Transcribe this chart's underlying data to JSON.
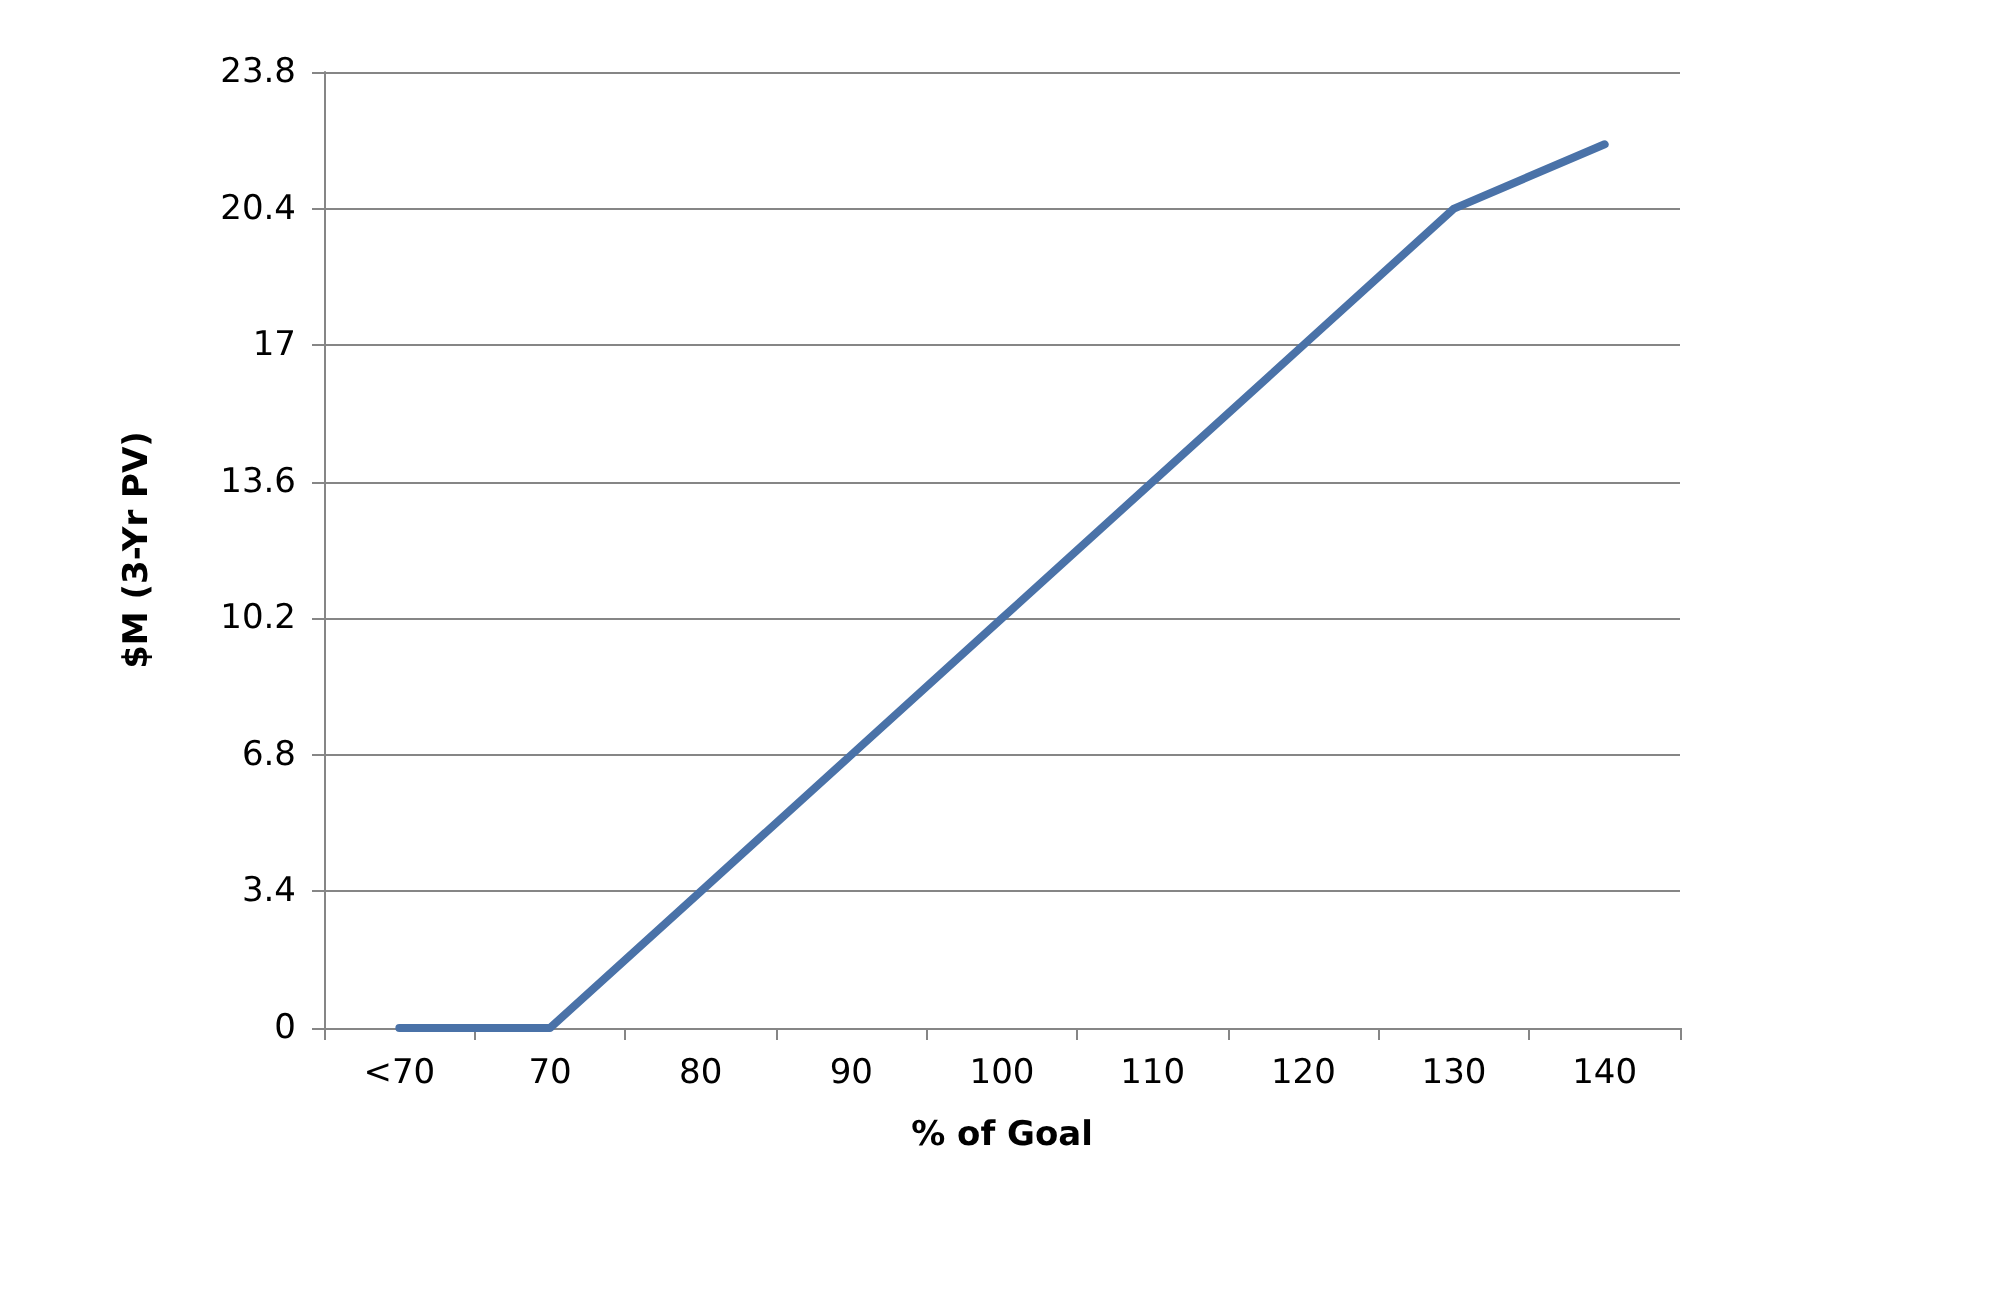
{
  "chart_data": {
    "type": "line",
    "xlabel": "% of Goal",
    "ylabel": "$M (3-Yr PV)",
    "categories": [
      "<70",
      "70",
      "80",
      "90",
      "100",
      "110",
      "120",
      "130",
      "140"
    ],
    "series": [
      {
        "color": "#4a72a8",
        "values": [
          0,
          0,
          3.4,
          6.8,
          10.2,
          13.6,
          17,
          20.4,
          22.0
        ]
      }
    ],
    "ylim": [
      0,
      23.8
    ],
    "yticks": [
      0,
      3.4,
      6.8,
      10.2,
      13.6,
      17,
      20.4,
      23.8
    ],
    "grid": "y",
    "marker": "none",
    "line_style": "solid"
  }
}
